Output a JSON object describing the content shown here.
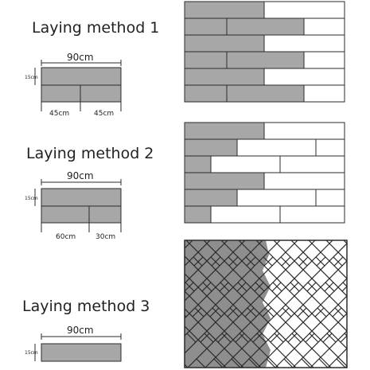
{
  "methods": [
    {
      "title": "Laying method 1",
      "width_label": "90cm",
      "height_label": "15cm",
      "segment_labels": [
        "45cm",
        "45cm"
      ]
    },
    {
      "title": "Laying method 2",
      "width_label": "90cm",
      "height_label": "15cm",
      "segment_labels": [
        "60cm",
        "30cm"
      ]
    },
    {
      "title": "Laying method 3",
      "width_label": "90cm",
      "height_label": "15cm"
    }
  ],
  "colors": {
    "tile_gray": "#a7a7a7",
    "tile_white": "#ffffff",
    "outline": "#2b2b2b",
    "herringbone_dark": "#8e8e8e"
  }
}
